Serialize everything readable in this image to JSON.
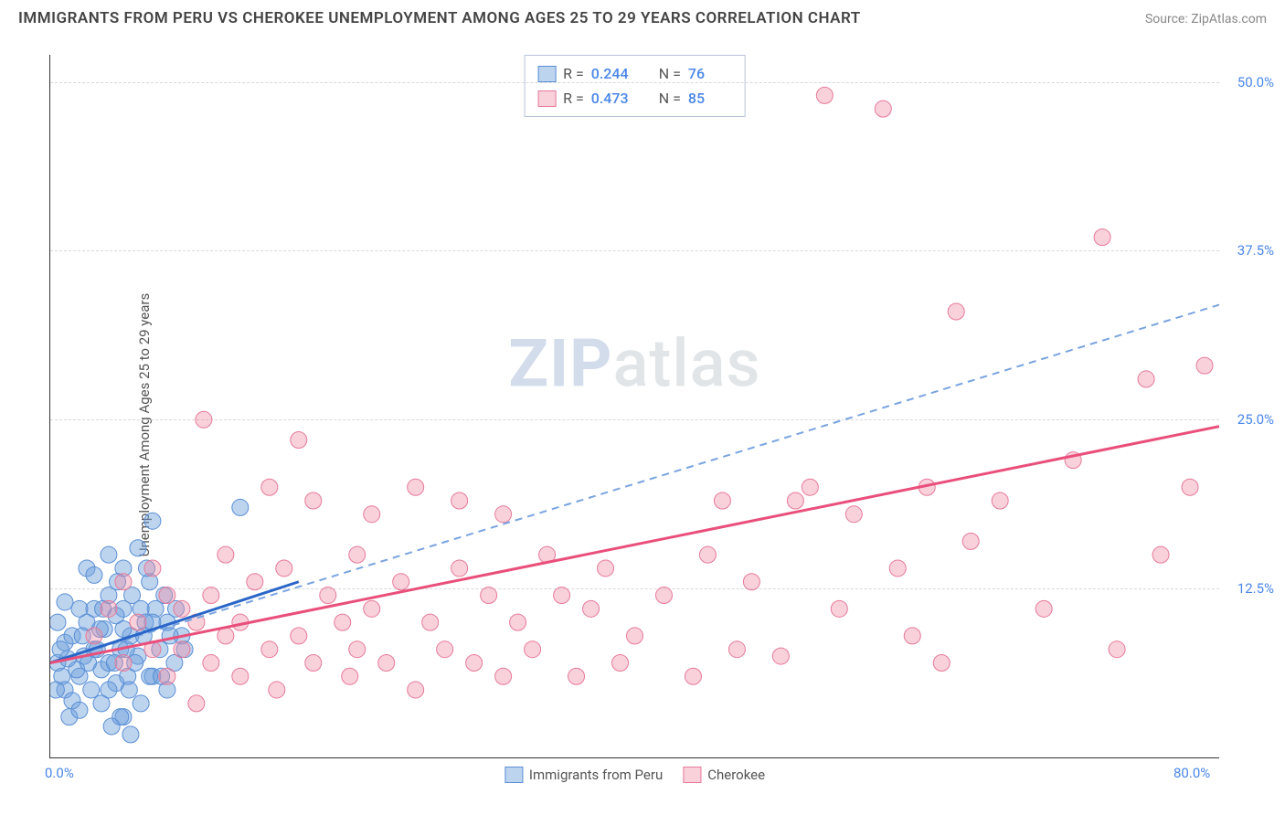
{
  "header": {
    "title": "IMMIGRANTS FROM PERU VS CHEROKEE UNEMPLOYMENT AMONG AGES 25 TO 29 YEARS CORRELATION CHART",
    "source_label": "Source: ",
    "source_name": "ZipAtlas.com"
  },
  "y_axis_label": "Unemployment Among Ages 25 to 29 years",
  "watermark": {
    "part1": "ZIP",
    "part2": "atlas"
  },
  "chart": {
    "type": "scatter",
    "background_color": "#ffffff",
    "grid_color": "#d8d8d8",
    "axis_color": "#333333",
    "xlim": [
      0,
      80
    ],
    "ylim": [
      0,
      52
    ],
    "xticks": [
      {
        "v": 0,
        "label": "0.0%"
      },
      {
        "v": 80,
        "label": "80.0%"
      }
    ],
    "yticks": [
      {
        "v": 12.5,
        "label": "12.5%"
      },
      {
        "v": 25.0,
        "label": "25.0%"
      },
      {
        "v": 37.5,
        "label": "37.5%"
      },
      {
        "v": 50.0,
        "label": "50.0%"
      }
    ],
    "series": [
      {
        "key": "peru",
        "legend_label": "Immigrants from Peru",
        "fill": "rgba(108,160,220,0.45)",
        "stroke": "#5a8fd6",
        "marker_r": 9,
        "R_label": "R = ",
        "R": "0.244",
        "N_label": "N = ",
        "N": "76",
        "trend_solid": {
          "color": "#2a66c8",
          "width": 3,
          "x1": 0,
          "y1": 7.0,
          "x2": 17,
          "y2": 13.0
        },
        "trend_dashed": {
          "color": "#7aa4e0",
          "width": 2,
          "x1": 0,
          "y1": 7.0,
          "x2": 80,
          "y2": 33.5,
          "dash": "8 6"
        },
        "points": [
          [
            0.5,
            7
          ],
          [
            0.8,
            6
          ],
          [
            1,
            8.5
          ],
          [
            1.2,
            7.3
          ],
          [
            1.5,
            9
          ],
          [
            1,
            5
          ],
          [
            2,
            6
          ],
          [
            2.3,
            7.5
          ],
          [
            2.5,
            10
          ],
          [
            3,
            8
          ],
          [
            3,
            11
          ],
          [
            3.5,
            6.5
          ],
          [
            3.7,
            9.5
          ],
          [
            4,
            7
          ],
          [
            4,
            12
          ],
          [
            4.5,
            5.5
          ],
          [
            4.8,
            8
          ],
          [
            5,
            11
          ],
          [
            5,
            3
          ],
          [
            5.3,
            6
          ],
          [
            5.5,
            9
          ],
          [
            5.5,
            1.7
          ],
          [
            6,
            15.5
          ],
          [
            6,
            7.5
          ],
          [
            6.2,
            4
          ],
          [
            6.5,
            10
          ],
          [
            6.8,
            13
          ],
          [
            7,
            6
          ],
          [
            7,
            17.5
          ],
          [
            1.5,
            4.2
          ],
          [
            2,
            11
          ],
          [
            2.5,
            14
          ],
          [
            3,
            13.5
          ],
          [
            3.5,
            4
          ],
          [
            4,
            15
          ],
          [
            4.2,
            2.3
          ],
          [
            4.5,
            10.5
          ],
          [
            5,
            14
          ],
          [
            7.5,
            8
          ],
          [
            7.8,
            12
          ],
          [
            8,
            5
          ],
          [
            8,
            10
          ],
          [
            8.5,
            7
          ],
          [
            9,
            9
          ],
          [
            0.5,
            10
          ],
          [
            1,
            11.5
          ],
          [
            1.3,
            3
          ],
          [
            1.8,
            6.5
          ],
          [
            2.2,
            9
          ],
          [
            2.8,
            5
          ],
          [
            3.2,
            8
          ],
          [
            3.6,
            11
          ],
          [
            4.4,
            7
          ],
          [
            4.8,
            3
          ],
          [
            5.2,
            8
          ],
          [
            5.6,
            12
          ],
          [
            6.4,
            9
          ],
          [
            6.8,
            6
          ],
          [
            7.2,
            11
          ],
          [
            0.4,
            5
          ],
          [
            0.7,
            8
          ],
          [
            2,
            3.5
          ],
          [
            2.6,
            7
          ],
          [
            3.4,
            9.5
          ],
          [
            4,
            5
          ],
          [
            4.6,
            13
          ],
          [
            5,
            9.5
          ],
          [
            5.4,
            5
          ],
          [
            5.8,
            7
          ],
          [
            6.2,
            11
          ],
          [
            6.6,
            14
          ],
          [
            7,
            10
          ],
          [
            7.6,
            6
          ],
          [
            8.2,
            9
          ],
          [
            8.6,
            11
          ],
          [
            9.2,
            8
          ],
          [
            13,
            18.5
          ]
        ]
      },
      {
        "key": "cherokee",
        "legend_label": "Cherokee",
        "fill": "rgba(240,140,165,0.40)",
        "stroke": "#e67a99",
        "marker_r": 9,
        "R_label": "R = ",
        "R": "0.473",
        "N_label": "N = ",
        "N": "85",
        "trend_solid": {
          "color": "#e94f7a",
          "width": 3,
          "x1": 0,
          "y1": 7.0,
          "x2": 80,
          "y2": 24.5
        },
        "points": [
          [
            3,
            9
          ],
          [
            4,
            11
          ],
          [
            5,
            7
          ],
          [
            5,
            13
          ],
          [
            6,
            10
          ],
          [
            7,
            8
          ],
          [
            7,
            14
          ],
          [
            8,
            12
          ],
          [
            8,
            6
          ],
          [
            9,
            8
          ],
          [
            9,
            11
          ],
          [
            10,
            4
          ],
          [
            10,
            10
          ],
          [
            10.5,
            25
          ],
          [
            11,
            7
          ],
          [
            11,
            12
          ],
          [
            12,
            9
          ],
          [
            12,
            15
          ],
          [
            13,
            6
          ],
          [
            13,
            10
          ],
          [
            14,
            13
          ],
          [
            15,
            8
          ],
          [
            15,
            20
          ],
          [
            15.5,
            5
          ],
          [
            16,
            14
          ],
          [
            17,
            9
          ],
          [
            17,
            23.5
          ],
          [
            18,
            7
          ],
          [
            18,
            19
          ],
          [
            19,
            12
          ],
          [
            20,
            10
          ],
          [
            20.5,
            6
          ],
          [
            21,
            15
          ],
          [
            21,
            8
          ],
          [
            22,
            18
          ],
          [
            22,
            11
          ],
          [
            23,
            7
          ],
          [
            24,
            13
          ],
          [
            25,
            20
          ],
          [
            25,
            5
          ],
          [
            26,
            10
          ],
          [
            27,
            8
          ],
          [
            28,
            14
          ],
          [
            28,
            19
          ],
          [
            29,
            7
          ],
          [
            30,
            12
          ],
          [
            31,
            6
          ],
          [
            31,
            18
          ],
          [
            32,
            10
          ],
          [
            33,
            8
          ],
          [
            34,
            15
          ],
          [
            35,
            12
          ],
          [
            36,
            6
          ],
          [
            37,
            11
          ],
          [
            38,
            14
          ],
          [
            39,
            7
          ],
          [
            40,
            9
          ],
          [
            42,
            12
          ],
          [
            44,
            6
          ],
          [
            45,
            15
          ],
          [
            46,
            19
          ],
          [
            47,
            8
          ],
          [
            48,
            13
          ],
          [
            50,
            7.5
          ],
          [
            51,
            19
          ],
          [
            52,
            20
          ],
          [
            53,
            49
          ],
          [
            54,
            11
          ],
          [
            55,
            18
          ],
          [
            57,
            48
          ],
          [
            58,
            14
          ],
          [
            59,
            9
          ],
          [
            60,
            20
          ],
          [
            61,
            7
          ],
          [
            62,
            33
          ],
          [
            63,
            16
          ],
          [
            65,
            19
          ],
          [
            68,
            11
          ],
          [
            70,
            22
          ],
          [
            72,
            38.5
          ],
          [
            73,
            8
          ],
          [
            75,
            28
          ],
          [
            76,
            15
          ],
          [
            78,
            20
          ],
          [
            79,
            29
          ]
        ]
      }
    ]
  }
}
